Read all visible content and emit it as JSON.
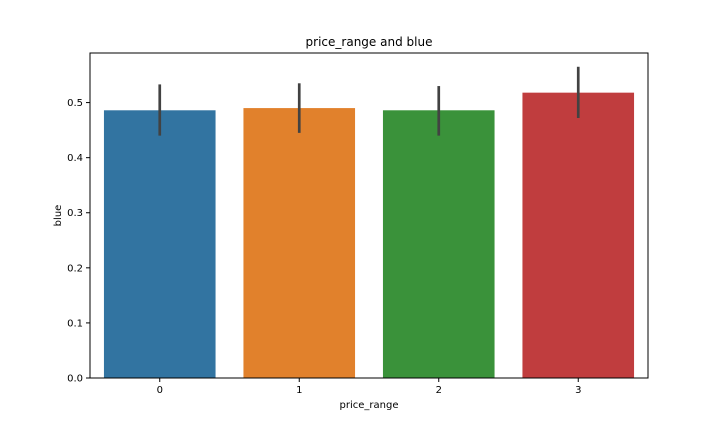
{
  "chart_data": {
    "type": "bar",
    "title": "price_range and blue",
    "xlabel": "price_range",
    "ylabel": "blue",
    "categories": [
      "0",
      "1",
      "2",
      "3"
    ],
    "values": [
      0.486,
      0.49,
      0.486,
      0.518
    ],
    "error_low": [
      0.44,
      0.445,
      0.44,
      0.472
    ],
    "error_high": [
      0.533,
      0.535,
      0.53,
      0.565
    ],
    "colors": [
      "#3274a1",
      "#e1812c",
      "#3a923a",
      "#c03d3e"
    ],
    "yticks": [
      "0.0",
      "0.1",
      "0.2",
      "0.3",
      "0.4",
      "0.5"
    ],
    "ylim": [
      0,
      0.59
    ],
    "grid": false,
    "legend": "none",
    "errorbar_color": "#424242"
  }
}
